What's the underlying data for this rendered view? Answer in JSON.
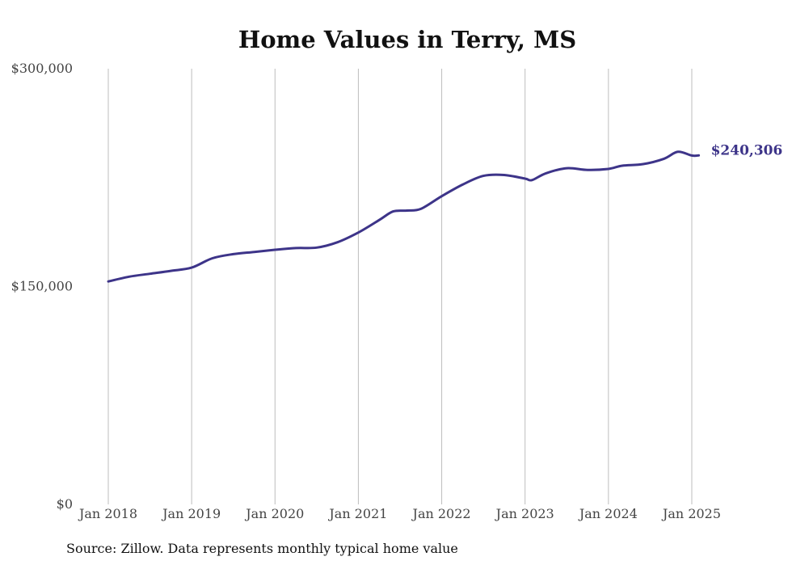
{
  "chart_data": {
    "type": "line",
    "title": "Home Values in Terry, MS",
    "source": "Source: Zillow. Data represents monthly typical home value",
    "ylim": [
      0,
      300000
    ],
    "y_ticks": [
      {
        "value": 0,
        "label": "$0"
      },
      {
        "value": 150000,
        "label": "$150,000"
      },
      {
        "value": 300000,
        "label": "$300,000"
      }
    ],
    "x_ticks": [
      {
        "date": "2018-01",
        "label": "Jan 2018"
      },
      {
        "date": "2019-01",
        "label": "Jan 2019"
      },
      {
        "date": "2020-01",
        "label": "Jan 2020"
      },
      {
        "date": "2021-01",
        "label": "Jan 2021"
      },
      {
        "date": "2022-01",
        "label": "Jan 2022"
      },
      {
        "date": "2023-01",
        "label": "Jan 2023"
      },
      {
        "date": "2024-01",
        "label": "Jan 2024"
      },
      {
        "date": "2025-01",
        "label": "Jan 2025"
      }
    ],
    "grid": "vertical",
    "line_color": "#3d3489",
    "end_label": "$240,306",
    "series": [
      {
        "x": [
          "2018-01",
          "2018-04",
          "2018-07",
          "2018-10",
          "2019-01",
          "2019-04",
          "2019-07",
          "2019-10",
          "2020-01",
          "2020-04",
          "2020-07",
          "2020-10",
          "2021-01",
          "2021-04",
          "2021-06",
          "2021-08",
          "2021-10",
          "2022-01",
          "2022-04",
          "2022-07",
          "2022-10",
          "2023-01",
          "2023-02",
          "2023-04",
          "2023-07",
          "2023-10",
          "2024-01",
          "2024-03",
          "2024-06",
          "2024-09",
          "2024-11",
          "2025-01",
          "2025-02"
        ],
        "y": [
          153500,
          156800,
          158800,
          160800,
          163000,
          169500,
          172300,
          173800,
          175300,
          176500,
          176800,
          180500,
          187200,
          195800,
          201700,
          202300,
          203500,
          212200,
          220200,
          226200,
          226800,
          224300,
          223300,
          228000,
          231500,
          230300,
          231000,
          233200,
          234300,
          238000,
          242800,
          240200,
          240306
        ]
      }
    ]
  }
}
